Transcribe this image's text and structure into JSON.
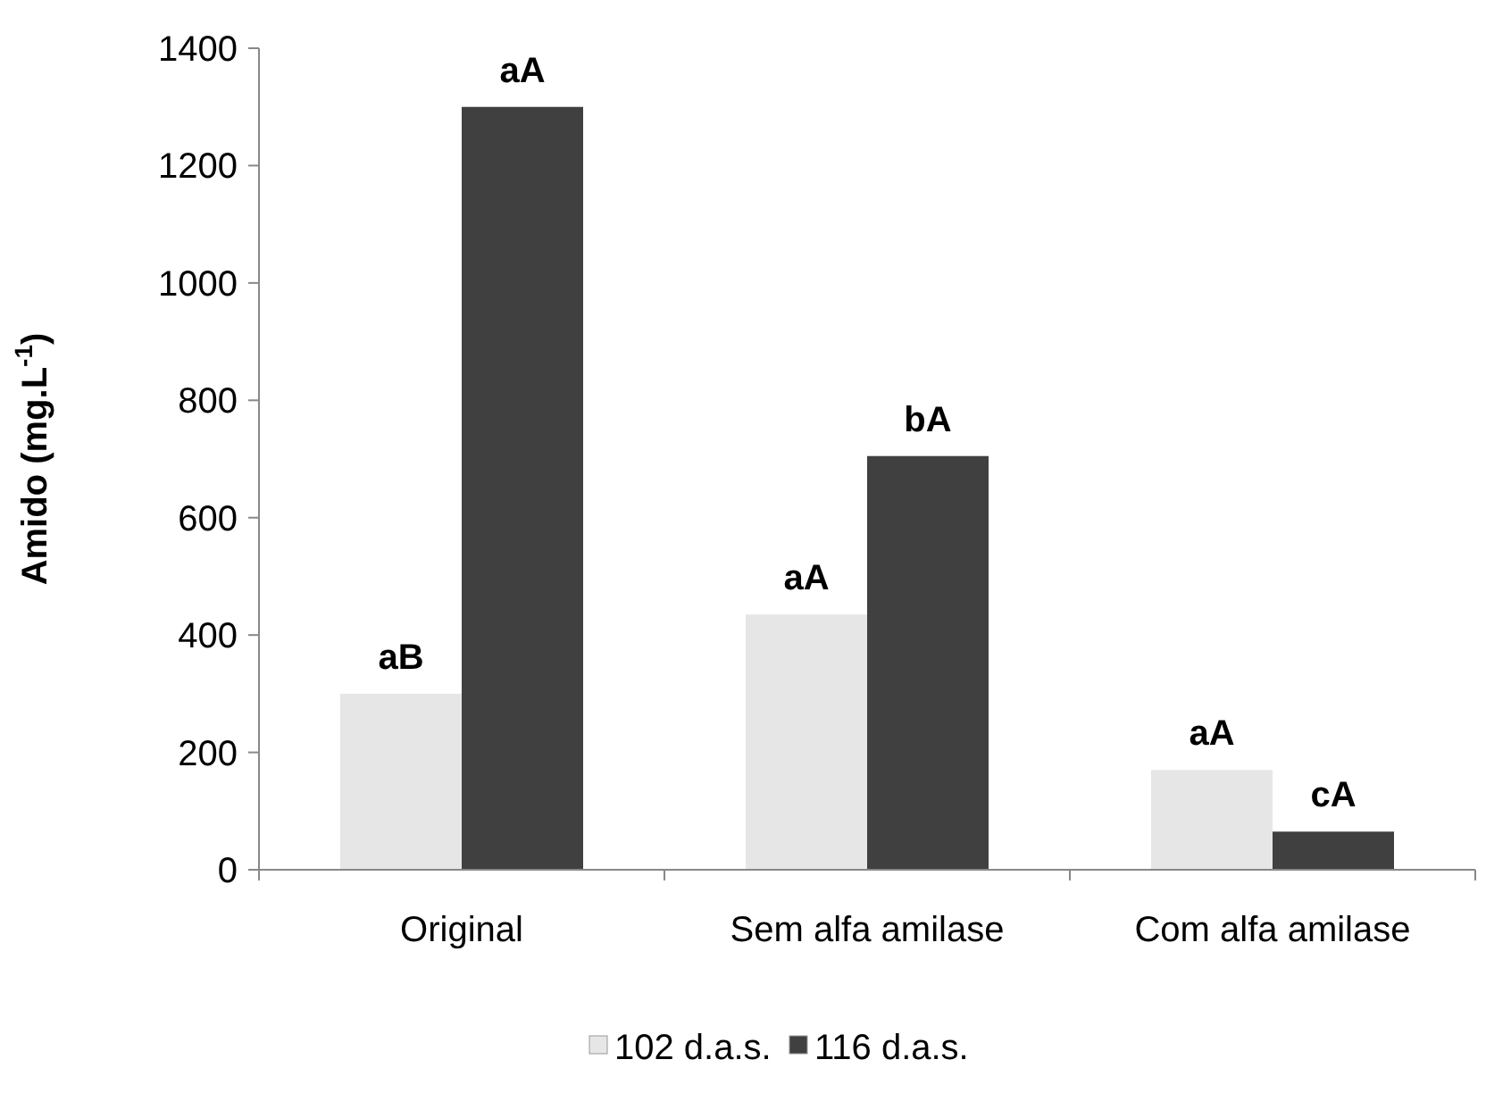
{
  "chart_data": {
    "type": "bar",
    "ylabel": "Amido (mg.L$^{-1}$)",
    "categories": [
      "Original",
      "Sem alfa amilase",
      "Com alfa amilase"
    ],
    "series": [
      {
        "name": "102 d.a.s.",
        "color": "#e6e6e6",
        "values": [
          300,
          435,
          170
        ],
        "value_labels": [
          "aB",
          "aA",
          "aA"
        ]
      },
      {
        "name": "116 d.a.s.",
        "color": "#404040",
        "values": [
          1300,
          705,
          65
        ],
        "value_labels": [
          "aA",
          "bA",
          "cA"
        ]
      }
    ],
    "ylim": [
      0,
      1400
    ],
    "yticks": [
      0,
      200,
      400,
      600,
      800,
      1000,
      1200,
      1400
    ],
    "grid": false,
    "legend": "bottom"
  }
}
